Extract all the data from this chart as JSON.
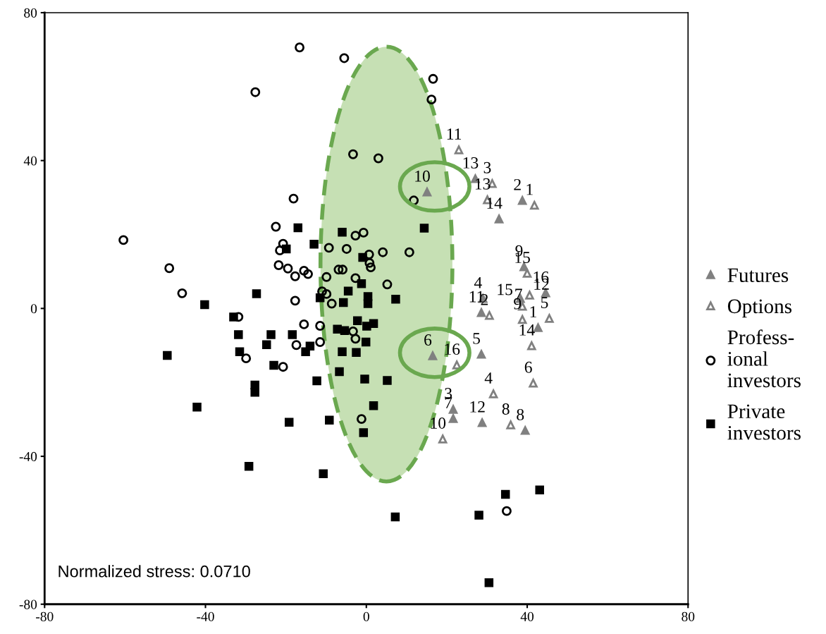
{
  "chart_data": {
    "type": "scatter",
    "xlim": [
      -80,
      80
    ],
    "ylim": [
      -80,
      80
    ],
    "xticks": [
      -80,
      -40,
      0,
      40,
      80
    ],
    "yticks": [
      -80,
      -40,
      0,
      40,
      80
    ],
    "grid": false,
    "legend": "right",
    "annotations": [
      "Normalized stress: 0.0710",
      {
        "text": "10",
        "x": 15.1,
        "y": 31.5
      },
      {
        "text": "13",
        "x": 27.1,
        "y": 35.1
      },
      {
        "text": "2",
        "x": 38.8,
        "y": 29.2
      },
      {
        "text": "14",
        "x": 33.0,
        "y": 24.2
      },
      {
        "text": "9",
        "x": 39.2,
        "y": 11.3
      },
      {
        "text": "4",
        "x": 29.0,
        "y": 2.7
      },
      {
        "text": "11",
        "x": 28.6,
        "y": -1.1
      },
      {
        "text": "15",
        "x": 38.3,
        "y": 2.7
      },
      {
        "text": "1",
        "x": 42.7,
        "y": -5.2
      },
      {
        "text": "16",
        "x": 44.6,
        "y": 4.2
      },
      {
        "text": "5",
        "x": 28.6,
        "y": -12.4
      },
      {
        "text": "6",
        "x": 16.5,
        "y": -12.8
      },
      {
        "text": "3",
        "x": 21.6,
        "y": -27.3
      },
      {
        "text": "7",
        "x": 21.6,
        "y": -29.8
      },
      {
        "text": "12",
        "x": 28.8,
        "y": -30.9
      },
      {
        "text": "8",
        "x": 39.5,
        "y": -33.0
      },
      {
        "text": "11",
        "x": 23.0,
        "y": 42.9
      },
      {
        "text": "3",
        "x": 31.3,
        "y": 33.8
      },
      {
        "text": "13",
        "x": 30.1,
        "y": 29.4
      },
      {
        "text": "1",
        "x": 41.8,
        "y": 27.9
      },
      {
        "text": "2",
        "x": 30.6,
        "y": -1.9
      },
      {
        "text": "15",
        "x": 40.0,
        "y": 9.5
      },
      {
        "text": "12",
        "x": 40.6,
        "y": 3.6
      },
      {
        "text": "7",
        "x": 38.8,
        "y": 0.6
      },
      {
        "text": "9",
        "x": 38.8,
        "y": -3.0
      },
      {
        "text": "5",
        "x": 45.5,
        "y": -2.7
      },
      {
        "text": "14",
        "x": 41.1,
        "y": -10.1
      },
      {
        "text": "6",
        "x": 41.5,
        "y": -20.2
      },
      {
        "text": "16",
        "x": 22.5,
        "y": -15.3
      },
      {
        "text": "4",
        "x": 31.6,
        "y": -23.1
      },
      {
        "text": "10",
        "x": 19.0,
        "y": -35.3
      },
      {
        "text": "8",
        "x": 35.9,
        "y": -31.5
      }
    ],
    "series": [
      {
        "name": "Futures",
        "color": "#808080",
        "marker": "triangle",
        "x": [
          15.1,
          27.1,
          38.8,
          33.0,
          39.2,
          29.0,
          28.6,
          38.3,
          42.7,
          44.6,
          28.6,
          16.5,
          21.6,
          21.6,
          28.8,
          39.5
        ],
        "values": [
          31.5,
          35.1,
          29.2,
          24.2,
          11.3,
          2.7,
          -1.1,
          2.7,
          -5.2,
          4.2,
          -12.4,
          -12.8,
          -27.3,
          -29.8,
          -30.9,
          -33.0
        ]
      },
      {
        "name": "Options",
        "color": "#808080",
        "marker": "triangle-open",
        "x": [
          23.0,
          31.3,
          30.1,
          41.8,
          30.6,
          40.0,
          40.6,
          38.8,
          38.8,
          45.5,
          41.1,
          41.5,
          22.5,
          31.6,
          19.0,
          35.9
        ],
        "values": [
          42.9,
          33.8,
          29.4,
          27.9,
          -1.9,
          9.5,
          3.6,
          0.6,
          -3.0,
          -2.7,
          -10.1,
          -20.2,
          -15.3,
          -23.1,
          -35.3,
          -31.5
        ]
      },
      {
        "name": "Profess-\nional\ninvestors",
        "color": "#000000",
        "marker": "circle-open",
        "x": [
          -16.6,
          -5.5,
          -27.6,
          16.6,
          16.2,
          -3.3,
          3.0,
          -18.1,
          11.8,
          -60.4,
          -22.5,
          -2.7,
          -0.7,
          -20.7,
          -21.5,
          -9.3,
          -4.9,
          0.7,
          4.1,
          10.7,
          -49.0,
          -21.8,
          -19.5,
          -15.5,
          -14.5,
          -17.7,
          -9.9,
          -6.9,
          -5.9,
          0.8,
          1.1,
          -2.7,
          5.2,
          -45.8,
          -17.7,
          -11.0,
          -9.9,
          -8.6,
          -31.8,
          -15.5,
          -11.5,
          -3.3,
          -2.7,
          -11.5,
          -17.4,
          -29.9,
          -20.7,
          -1.2,
          34.9
        ],
        "values": [
          70.6,
          67.7,
          58.5,
          62.1,
          56.5,
          41.7,
          40.6,
          29.7,
          29.2,
          18.5,
          22.1,
          19.7,
          20.5,
          17.5,
          15.7,
          16.4,
          16.1,
          14.6,
          15.2,
          15.2,
          10.9,
          11.7,
          10.8,
          10.2,
          9.3,
          8.7,
          8.5,
          10.5,
          10.5,
          12.3,
          11.1,
          8.2,
          6.5,
          4.1,
          2.1,
          4.6,
          3.9,
          1.3,
          -2.3,
          -4.3,
          -4.7,
          -6.2,
          -8.2,
          -9.1,
          -9.9,
          -13.5,
          -15.8,
          -29.9,
          -54.8
        ]
      },
      {
        "name": "Private\ninvestors",
        "color": "#000000",
        "marker": "square",
        "x": [
          -17.0,
          -6.0,
          14.4,
          -13.0,
          -19.9,
          -0.9,
          -1.2,
          -4.5,
          -27.3,
          -40.2,
          -11.5,
          -5.7,
          0.4,
          0.4,
          7.3,
          -33.0,
          -2.2,
          0.1,
          1.8,
          -7.2,
          -5.4,
          -31.8,
          -23.7,
          -18.4,
          -0.1,
          -24.8,
          -14.0,
          -15.1,
          -31.5,
          -6.0,
          -2.5,
          -49.5,
          -23.0,
          -6.7,
          -12.3,
          -0.4,
          5.2,
          -27.7,
          -27.7,
          1.8,
          -42.1,
          -19.2,
          -9.2,
          -0.7,
          -29.2,
          -10.7,
          7.2,
          28.0,
          34.6,
          43.1,
          30.5
        ],
        "values": [
          21.8,
          20.6,
          21.7,
          17.4,
          16.1,
          13.8,
          6.7,
          4.7,
          4.0,
          1.0,
          2.9,
          1.6,
          3.2,
          1.3,
          2.5,
          -2.3,
          -3.3,
          -4.8,
          -4.1,
          -5.6,
          -6.0,
          -7.1,
          -7.1,
          -7.1,
          -9.1,
          -9.8,
          -10.2,
          -11.7,
          -11.7,
          -11.7,
          -11.9,
          -12.7,
          -15.4,
          -17.1,
          -19.6,
          -19.1,
          -19.5,
          -20.7,
          -22.7,
          -26.3,
          -26.7,
          -30.8,
          -30.2,
          -33.6,
          -42.7,
          -44.7,
          -56.4,
          -55.9,
          -50.3,
          -49.1,
          -74.2
        ]
      }
    ]
  }
}
